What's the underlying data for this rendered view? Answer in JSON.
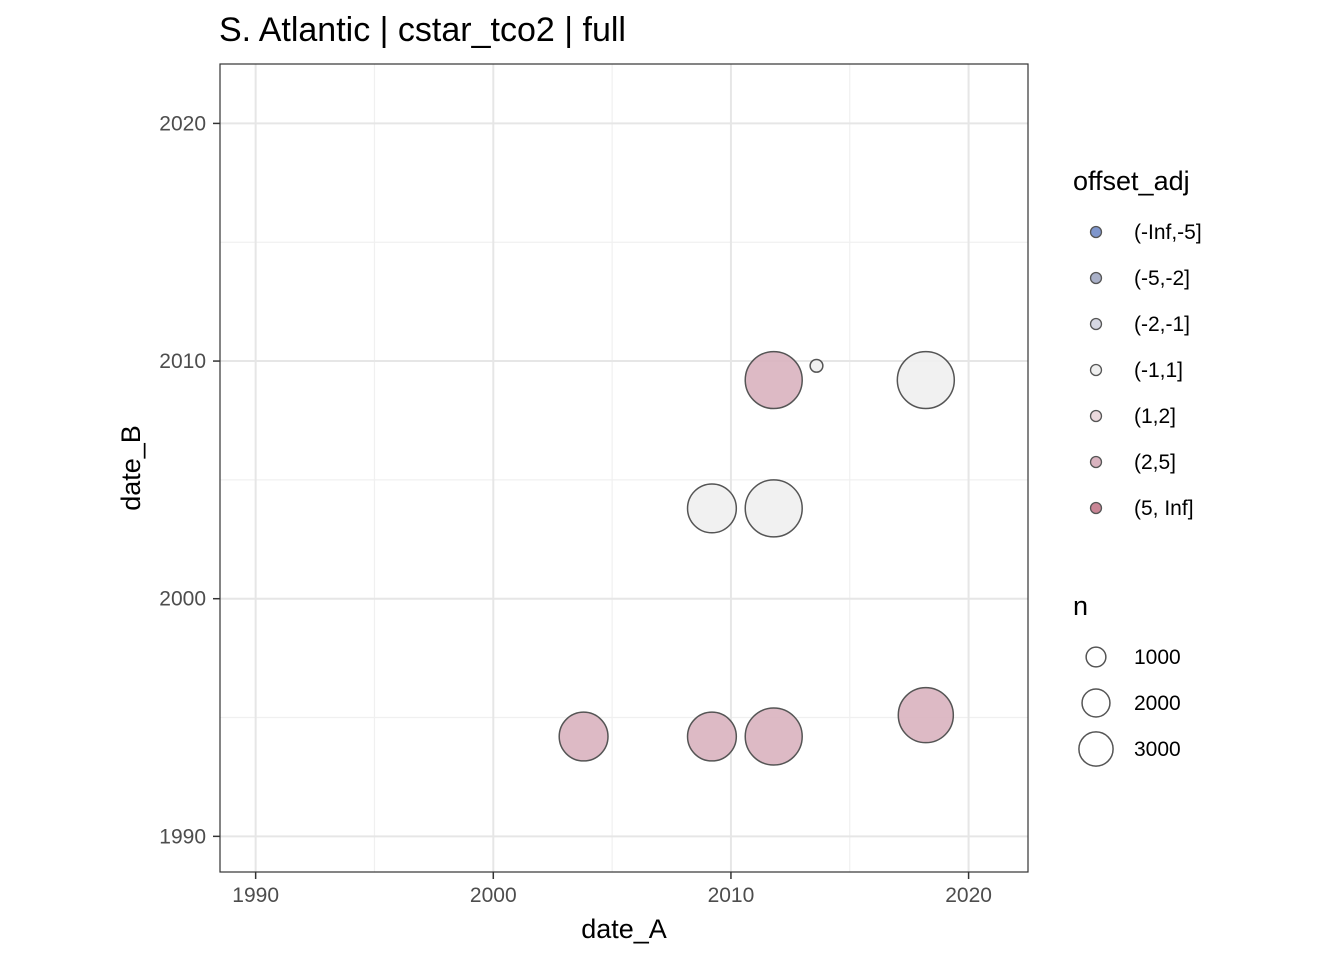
{
  "chart_data": {
    "type": "scatter",
    "title": "S. Atlantic | cstar_tco2 | full",
    "xlabel": "date_A",
    "ylabel": "date_B",
    "xlim": [
      1988.5,
      2022.5
    ],
    "ylim": [
      1988.5,
      2022.5
    ],
    "x_ticks": [
      1990,
      2000,
      2010,
      2020
    ],
    "y_ticks": [
      1990,
      2000,
      2010,
      2020
    ],
    "grid": true,
    "legend_position": "right",
    "color_legend": {
      "title": "offset_adj",
      "entries": [
        {
          "label": "(-Inf,-5]",
          "color": "#7f96cc"
        },
        {
          "label": "(-5,-2]",
          "color": "#a9b0c8"
        },
        {
          "label": "(-2,-1]",
          "color": "#d6d7e2"
        },
        {
          "label": "(-1,1]",
          "color": "#efefef"
        },
        {
          "label": "(1,2]",
          "color": "#ebd9dd"
        },
        {
          "label": "(2,5]",
          "color": "#d9b3bf"
        },
        {
          "label": "(5, Inf]",
          "color": "#c98595"
        }
      ]
    },
    "size_legend": {
      "title": "n",
      "entries": [
        {
          "label": "1000",
          "value": 1000
        },
        {
          "label": "2000",
          "value": 2000
        },
        {
          "label": "3000",
          "value": 3000
        }
      ]
    },
    "points": [
      {
        "x": 2003.8,
        "y": 1994.2,
        "n": 2200,
        "category": "(2,5]"
      },
      {
        "x": 2009.2,
        "y": 1994.2,
        "n": 2200,
        "category": "(2,5]"
      },
      {
        "x": 2011.8,
        "y": 1994.2,
        "n": 3000,
        "category": "(2,5]"
      },
      {
        "x": 2018.2,
        "y": 1995.1,
        "n": 2800,
        "category": "(2,5]"
      },
      {
        "x": 2009.2,
        "y": 2003.8,
        "n": 2200,
        "category": "(-1,1]"
      },
      {
        "x": 2011.8,
        "y": 2003.8,
        "n": 3000,
        "category": "(-1,1]"
      },
      {
        "x": 2011.8,
        "y": 2009.2,
        "n": 3000,
        "category": "(2,5]"
      },
      {
        "x": 2013.6,
        "y": 2009.8,
        "n": 150,
        "category": "(-1,1]"
      },
      {
        "x": 2018.2,
        "y": 2009.2,
        "n": 3000,
        "category": "(-1,1]"
      }
    ]
  }
}
